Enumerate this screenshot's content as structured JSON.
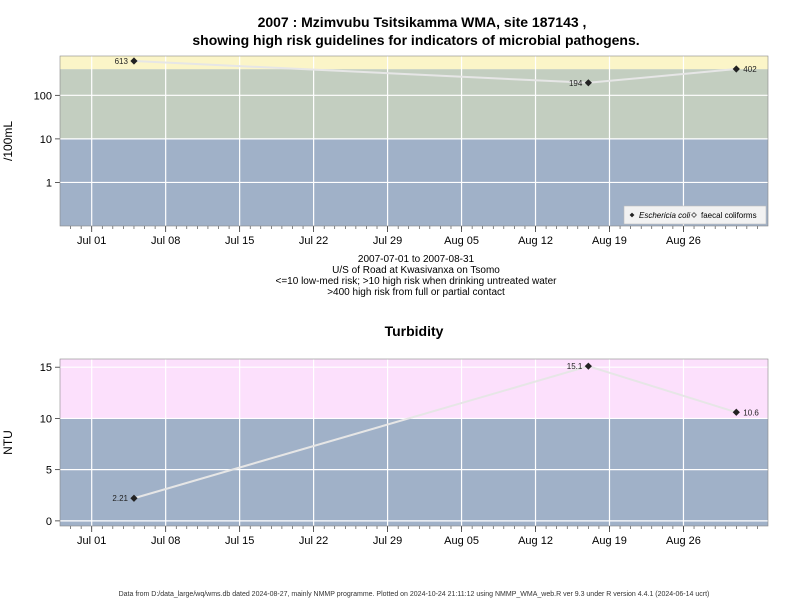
{
  "chart_data": [
    {
      "type": "scatter",
      "title_line1": "2007 : Mzimvubu Tsitsikamma WMA, site 187143 ,",
      "title_line2": "showing high risk guidelines for indicators of microbial pathogens.",
      "subtitle_lines": [
        "2007-07-01 to 2007-08-31",
        "U/S of Road at Kwasivanxa on Tsomo",
        "<=10 low-med risk; >10 high risk when drinking untreated water",
        ">400 high risk from full or partial contact"
      ],
      "xlabel": "",
      "ylabel": "/100mL",
      "yscale": "log",
      "ylim": [
        0.1,
        800
      ],
      "xlim": [
        "2007-06-28",
        "2007-09-03"
      ],
      "x_ticks": [
        {
          "date": "2007-07-01",
          "label": "Jul 01"
        },
        {
          "date": "2007-07-08",
          "label": "Jul 08"
        },
        {
          "date": "2007-07-15",
          "label": "Jul 15"
        },
        {
          "date": "2007-07-22",
          "label": "Jul 22"
        },
        {
          "date": "2007-07-29",
          "label": "Jul 29"
        },
        {
          "date": "2007-08-05",
          "label": "Aug 05"
        },
        {
          "date": "2007-08-12",
          "label": "Aug 12"
        },
        {
          "date": "2007-08-19",
          "label": "Aug 19"
        },
        {
          "date": "2007-08-26",
          "label": "Aug 26"
        }
      ],
      "y_ticks": [
        {
          "value": 1,
          "label": "1"
        },
        {
          "value": 10,
          "label": "10"
        },
        {
          "value": 100,
          "label": "100"
        }
      ],
      "bands": [
        {
          "from": 0.1,
          "to": 10,
          "color": "#a0b1c8"
        },
        {
          "from": 10,
          "to": 400,
          "color": "#c3cec0"
        },
        {
          "from": 400,
          "to": 800,
          "color": "#fbf5c8"
        }
      ],
      "grid": true,
      "legend_position": "bottom-right",
      "legend": [
        {
          "label": "Eschericia coli",
          "marker": "filled-diamond"
        },
        {
          "label": "faecal coliforms",
          "marker": "open-diamond"
        }
      ],
      "series": [
        {
          "name": "Eschericia coli",
          "color": "#222222",
          "points": [
            {
              "x": "2007-07-05",
              "y": 613,
              "label": "613"
            },
            {
              "x": "2007-08-17",
              "y": 194,
              "label": "194"
            },
            {
              "x": "2007-08-31",
              "y": 402,
              "label": "402"
            }
          ]
        }
      ]
    },
    {
      "type": "scatter",
      "title": "Turbidity",
      "xlabel": "",
      "ylabel": "NTU",
      "yscale": "linear",
      "ylim": [
        -0.5,
        15.8
      ],
      "xlim": [
        "2007-06-28",
        "2007-09-03"
      ],
      "x_ticks": [
        {
          "date": "2007-07-01",
          "label": "Jul 01"
        },
        {
          "date": "2007-07-08",
          "label": "Jul 08"
        },
        {
          "date": "2007-07-15",
          "label": "Jul 15"
        },
        {
          "date": "2007-07-22",
          "label": "Jul 22"
        },
        {
          "date": "2007-07-29",
          "label": "Jul 29"
        },
        {
          "date": "2007-08-05",
          "label": "Aug 05"
        },
        {
          "date": "2007-08-12",
          "label": "Aug 12"
        },
        {
          "date": "2007-08-19",
          "label": "Aug 19"
        },
        {
          "date": "2007-08-26",
          "label": "Aug 26"
        }
      ],
      "y_ticks": [
        {
          "value": 0,
          "label": "0"
        },
        {
          "value": 5,
          "label": "5"
        },
        {
          "value": 10,
          "label": "10"
        },
        {
          "value": 15,
          "label": "15"
        }
      ],
      "bands": [
        {
          "from": -0.5,
          "to": 10,
          "color": "#a0b1c8"
        },
        {
          "from": 10,
          "to": 15.8,
          "color": "#fce0fc"
        }
      ],
      "grid": true,
      "series": [
        {
          "name": "",
          "color": "#222222",
          "points": [
            {
              "x": "2007-07-05",
              "y": 2.21,
              "label": "2.21"
            },
            {
              "x": "2007-08-17",
              "y": 15.1,
              "label": "15.1"
            },
            {
              "x": "2007-08-31",
              "y": 10.6,
              "label": "10.6"
            }
          ]
        }
      ]
    }
  ],
  "footer": "Data from D:/data_large/wq/wms.db dated 2024-08-27, mainly NMMP programme. Plotted on 2024-10-24 21:11:12 using NMMP_WMA_web.R ver 9.3 under R version 4.4.1 (2024-06-14 ucrt)"
}
